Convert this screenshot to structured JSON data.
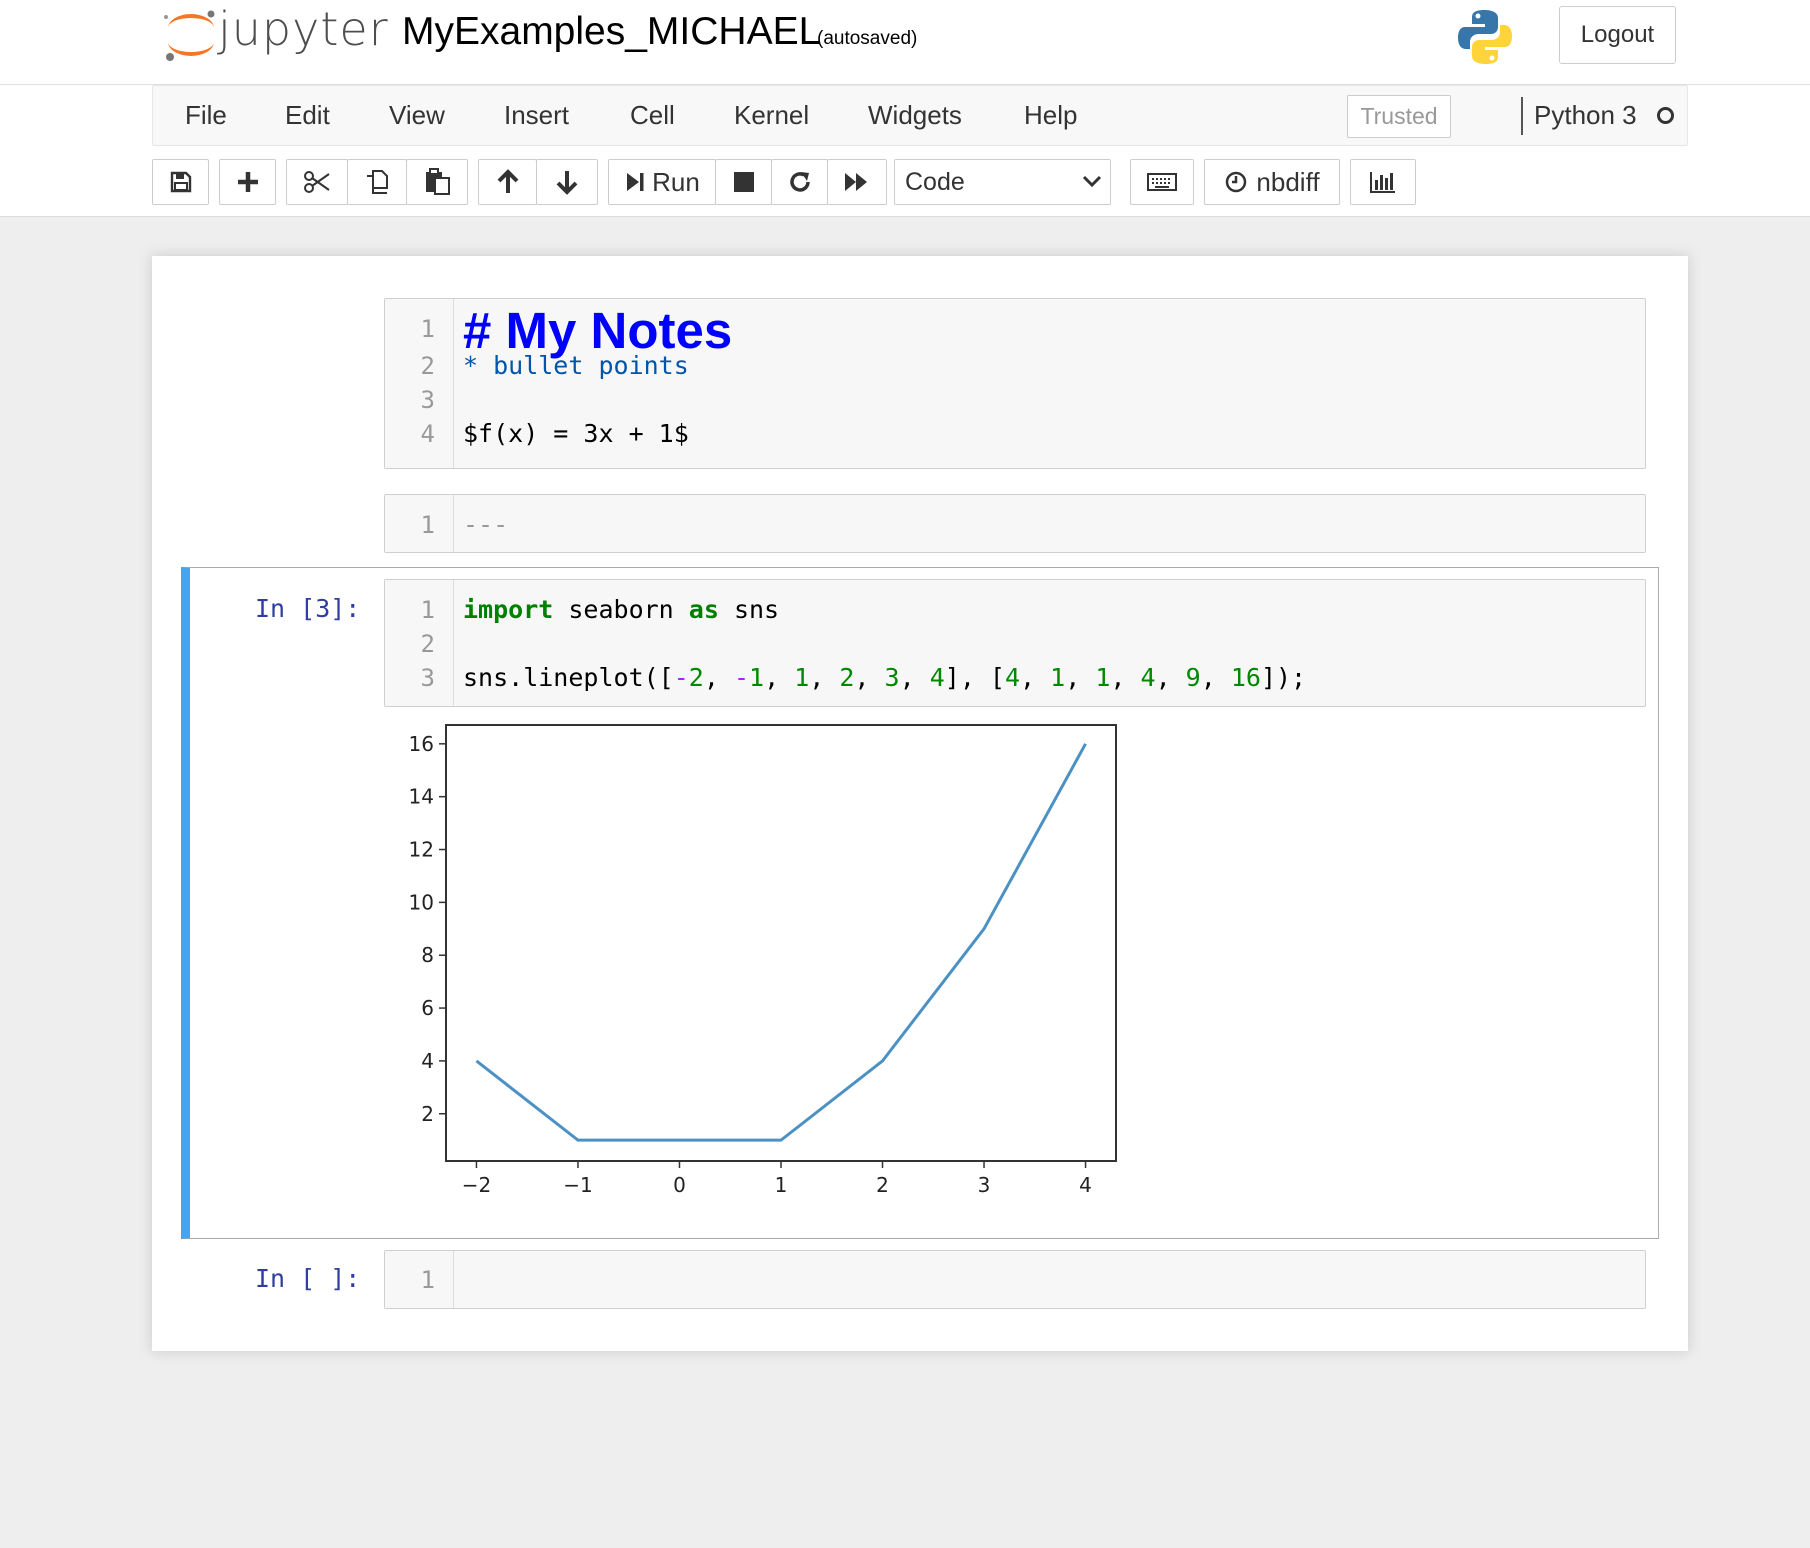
{
  "header": {
    "logo_text": "jupyter",
    "notebook_name": "MyExamples_MICHAEL",
    "autosave_status": "(autosaved)",
    "logout_label": "Logout",
    "python_logo_icon": "python-logo-icon"
  },
  "menubar": {
    "items": [
      "File",
      "Edit",
      "View",
      "Insert",
      "Cell",
      "Kernel",
      "Widgets",
      "Help"
    ],
    "trusted_label": "Trusted",
    "kernel_name": "Python 3"
  },
  "toolbar": {
    "run_label": "Run",
    "cell_type": "Code",
    "nbdiff_label": "nbdiff",
    "buttons": [
      "save-icon",
      "plus-icon",
      "cut-icon",
      "copy-icon",
      "paste-icon",
      "arrow-up-icon",
      "arrow-down-icon",
      "run-icon",
      "stop-icon",
      "restart-icon",
      "fast-forward-icon",
      "keyboard-icon",
      "clock-icon",
      "bar-chart-icon"
    ]
  },
  "cells": [
    {
      "type": "markdown",
      "line_numbers": [
        "1",
        "2",
        "3",
        "4"
      ],
      "lines": [
        "# My Notes",
        "* bullet points",
        "",
        "$f(x) = 3x + 1$"
      ]
    },
    {
      "type": "markdown",
      "line_numbers": [
        "1"
      ],
      "lines": [
        "---"
      ]
    },
    {
      "type": "code",
      "prompt": "In [3]:",
      "line_numbers": [
        "1",
        "2",
        "3"
      ],
      "line1": {
        "kw_import": "import",
        "mod": " seaborn ",
        "kw_as": "as",
        "alias": " sns"
      },
      "line3_prefix": "sns.lineplot([",
      "x_tokens": [
        "-2",
        "-1",
        "1",
        "2",
        "3",
        "4"
      ],
      "y_tokens": [
        "4",
        "1",
        "1",
        "4",
        "9",
        "16"
      ],
      "line3_suffix": "]);"
    },
    {
      "type": "code",
      "prompt": "In [ ]:",
      "line_numbers": [
        "1"
      ],
      "lines": [
        ""
      ]
    }
  ],
  "chart_data": {
    "type": "line",
    "x": [
      -2,
      -1,
      1,
      2,
      3,
      4
    ],
    "y": [
      4,
      1,
      1,
      4,
      9,
      16
    ],
    "xticks": [
      "−2",
      "−1",
      "0",
      "1",
      "2",
      "3",
      "4"
    ],
    "xtick_values": [
      -2,
      -1,
      0,
      1,
      2,
      3,
      4
    ],
    "yticks": [
      "2",
      "4",
      "6",
      "8",
      "10",
      "12",
      "14",
      "16"
    ],
    "ytick_values": [
      2,
      4,
      6,
      8,
      10,
      12,
      14,
      16
    ],
    "xlim": [
      -2.3,
      4.3
    ],
    "ylim": [
      0.25,
      16.75
    ],
    "line_color": "#4c91c4",
    "title": "",
    "xlabel": "",
    "ylabel": "",
    "grid": false
  },
  "colors": {
    "heading": "#0000ff",
    "bullet": "#0055aa",
    "keyword": "#008000",
    "number": "#008800",
    "operator": "#aa22ff",
    "selected_bar": "#42a5f5",
    "prompt": "#303f9f"
  }
}
